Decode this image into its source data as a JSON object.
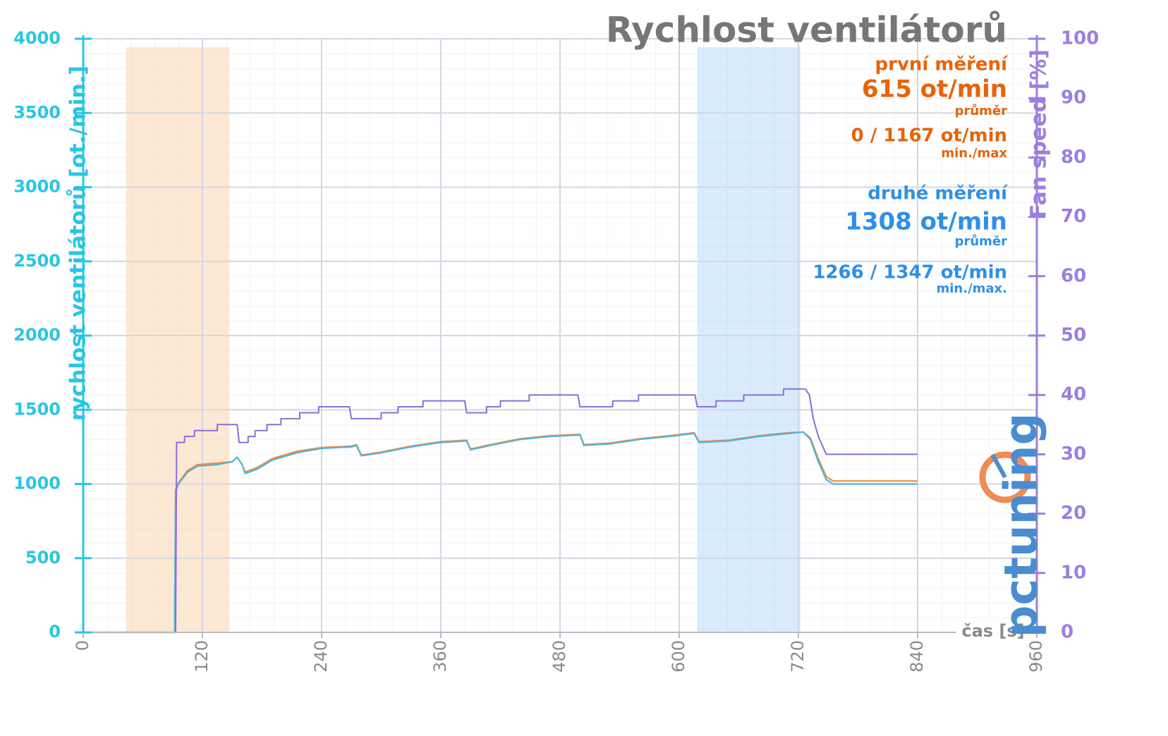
{
  "chart_data": {
    "type": "line",
    "title": "Rychlost ventilátorů",
    "y_label": "rychlost ventilátorů [ot./min.]",
    "y2_label": "Fan speed [%]",
    "x_label": "čas [s]",
    "logo": "pctuning",
    "xlim": [
      0,
      960
    ],
    "xticks": [
      0,
      120,
      240,
      360,
      480,
      600,
      720,
      840,
      960
    ],
    "ylim": [
      0,
      4000
    ],
    "yticks": [
      0,
      500,
      1000,
      1500,
      2000,
      2500,
      3000,
      3500,
      4000
    ],
    "y2lim": [
      0,
      100
    ],
    "y2ticks": [
      0,
      10,
      20,
      30,
      40,
      50,
      60,
      70,
      80,
      90,
      100
    ],
    "grid": true,
    "bands": [
      {
        "start": 43,
        "end": 147,
        "color": "rgba(250,205,160,0.45)"
      },
      {
        "start": 618,
        "end": 722,
        "color": "rgba(170,210,250,0.45)"
      }
    ],
    "annotations": [
      {
        "label": "615 ot/min",
        "caption": "průměr",
        "range": "0 / 1167 ot/min",
        "range_caption": "min./max"
      },
      {
        "label": "1308 ot/min",
        "caption": "průměr",
        "range": "1266 / 1347 ot/min",
        "range_caption": "min./max."
      }
    ],
    "series": [
      {
        "name": "první měření",
        "color": "#f08a3c",
        "x": [
          0,
          92,
          93,
          96,
          105,
          115,
          135,
          150,
          155,
          160,
          163,
          175,
          190,
          215,
          240,
          270,
          275,
          280,
          300,
          330,
          360,
          386,
          390,
          410,
          440,
          470,
          500,
          504,
          530,
          560,
          590,
          615,
          620,
          650,
          680,
          710,
          725,
          732,
          740,
          748,
          755,
          840
        ],
        "values": [
          0,
          0,
          960,
          1010,
          1090,
          1130,
          1140,
          1150,
          1180,
          1130,
          1080,
          1110,
          1170,
          1220,
          1245,
          1255,
          1265,
          1195,
          1215,
          1255,
          1285,
          1295,
          1235,
          1265,
          1305,
          1325,
          1335,
          1265,
          1275,
          1305,
          1325,
          1345,
          1285,
          1295,
          1325,
          1345,
          1350,
          1310,
          1170,
          1050,
          1020,
          1020
        ]
      },
      {
        "name": "druhé měření",
        "color": "#4fb8d8",
        "x": [
          0,
          92,
          93,
          96,
          105,
          115,
          135,
          150,
          155,
          160,
          163,
          175,
          190,
          215,
          240,
          270,
          275,
          280,
          300,
          330,
          360,
          386,
          390,
          410,
          440,
          470,
          500,
          504,
          530,
          560,
          590,
          615,
          620,
          650,
          680,
          710,
          725,
          732,
          740,
          748,
          755,
          840
        ],
        "values": [
          0,
          0,
          950,
          1000,
          1080,
          1120,
          1130,
          1150,
          1180,
          1130,
          1070,
          1100,
          1160,
          1210,
          1240,
          1250,
          1260,
          1190,
          1210,
          1250,
          1280,
          1290,
          1230,
          1260,
          1300,
          1320,
          1330,
          1260,
          1270,
          1300,
          1320,
          1340,
          1280,
          1290,
          1320,
          1340,
          1350,
          1300,
          1150,
          1030,
          1000,
          1000
        ]
      },
      {
        "color": "#8a6fd8",
        "axis": "y2",
        "x": [
          0,
          93,
          94,
          102,
          102,
          112,
          112,
          135,
          135,
          155,
          157,
          166,
          166,
          173,
          173,
          185,
          185,
          199,
          199,
          218,
          218,
          237,
          237,
          268,
          270,
          300,
          300,
          317,
          317,
          342,
          342,
          384,
          386,
          406,
          406,
          420,
          420,
          449,
          449,
          498,
          500,
          533,
          533,
          559,
          559,
          616,
          618,
          637,
          637,
          665,
          665,
          705,
          705,
          727,
          731,
          735,
          740,
          748,
          840
        ],
        "values": [
          0,
          0,
          32,
          32,
          33,
          33,
          34,
          34,
          35,
          35,
          32,
          32,
          33,
          33,
          34,
          34,
          35,
          35,
          36,
          36,
          37,
          37,
          38,
          38,
          36,
          36,
          37,
          37,
          38,
          38,
          39,
          39,
          37,
          37,
          38,
          38,
          39,
          39,
          40,
          40,
          38,
          38,
          39,
          39,
          40,
          40,
          38,
          38,
          39,
          39,
          40,
          40,
          41,
          41,
          40,
          36,
          33,
          30,
          30
        ]
      }
    ]
  }
}
